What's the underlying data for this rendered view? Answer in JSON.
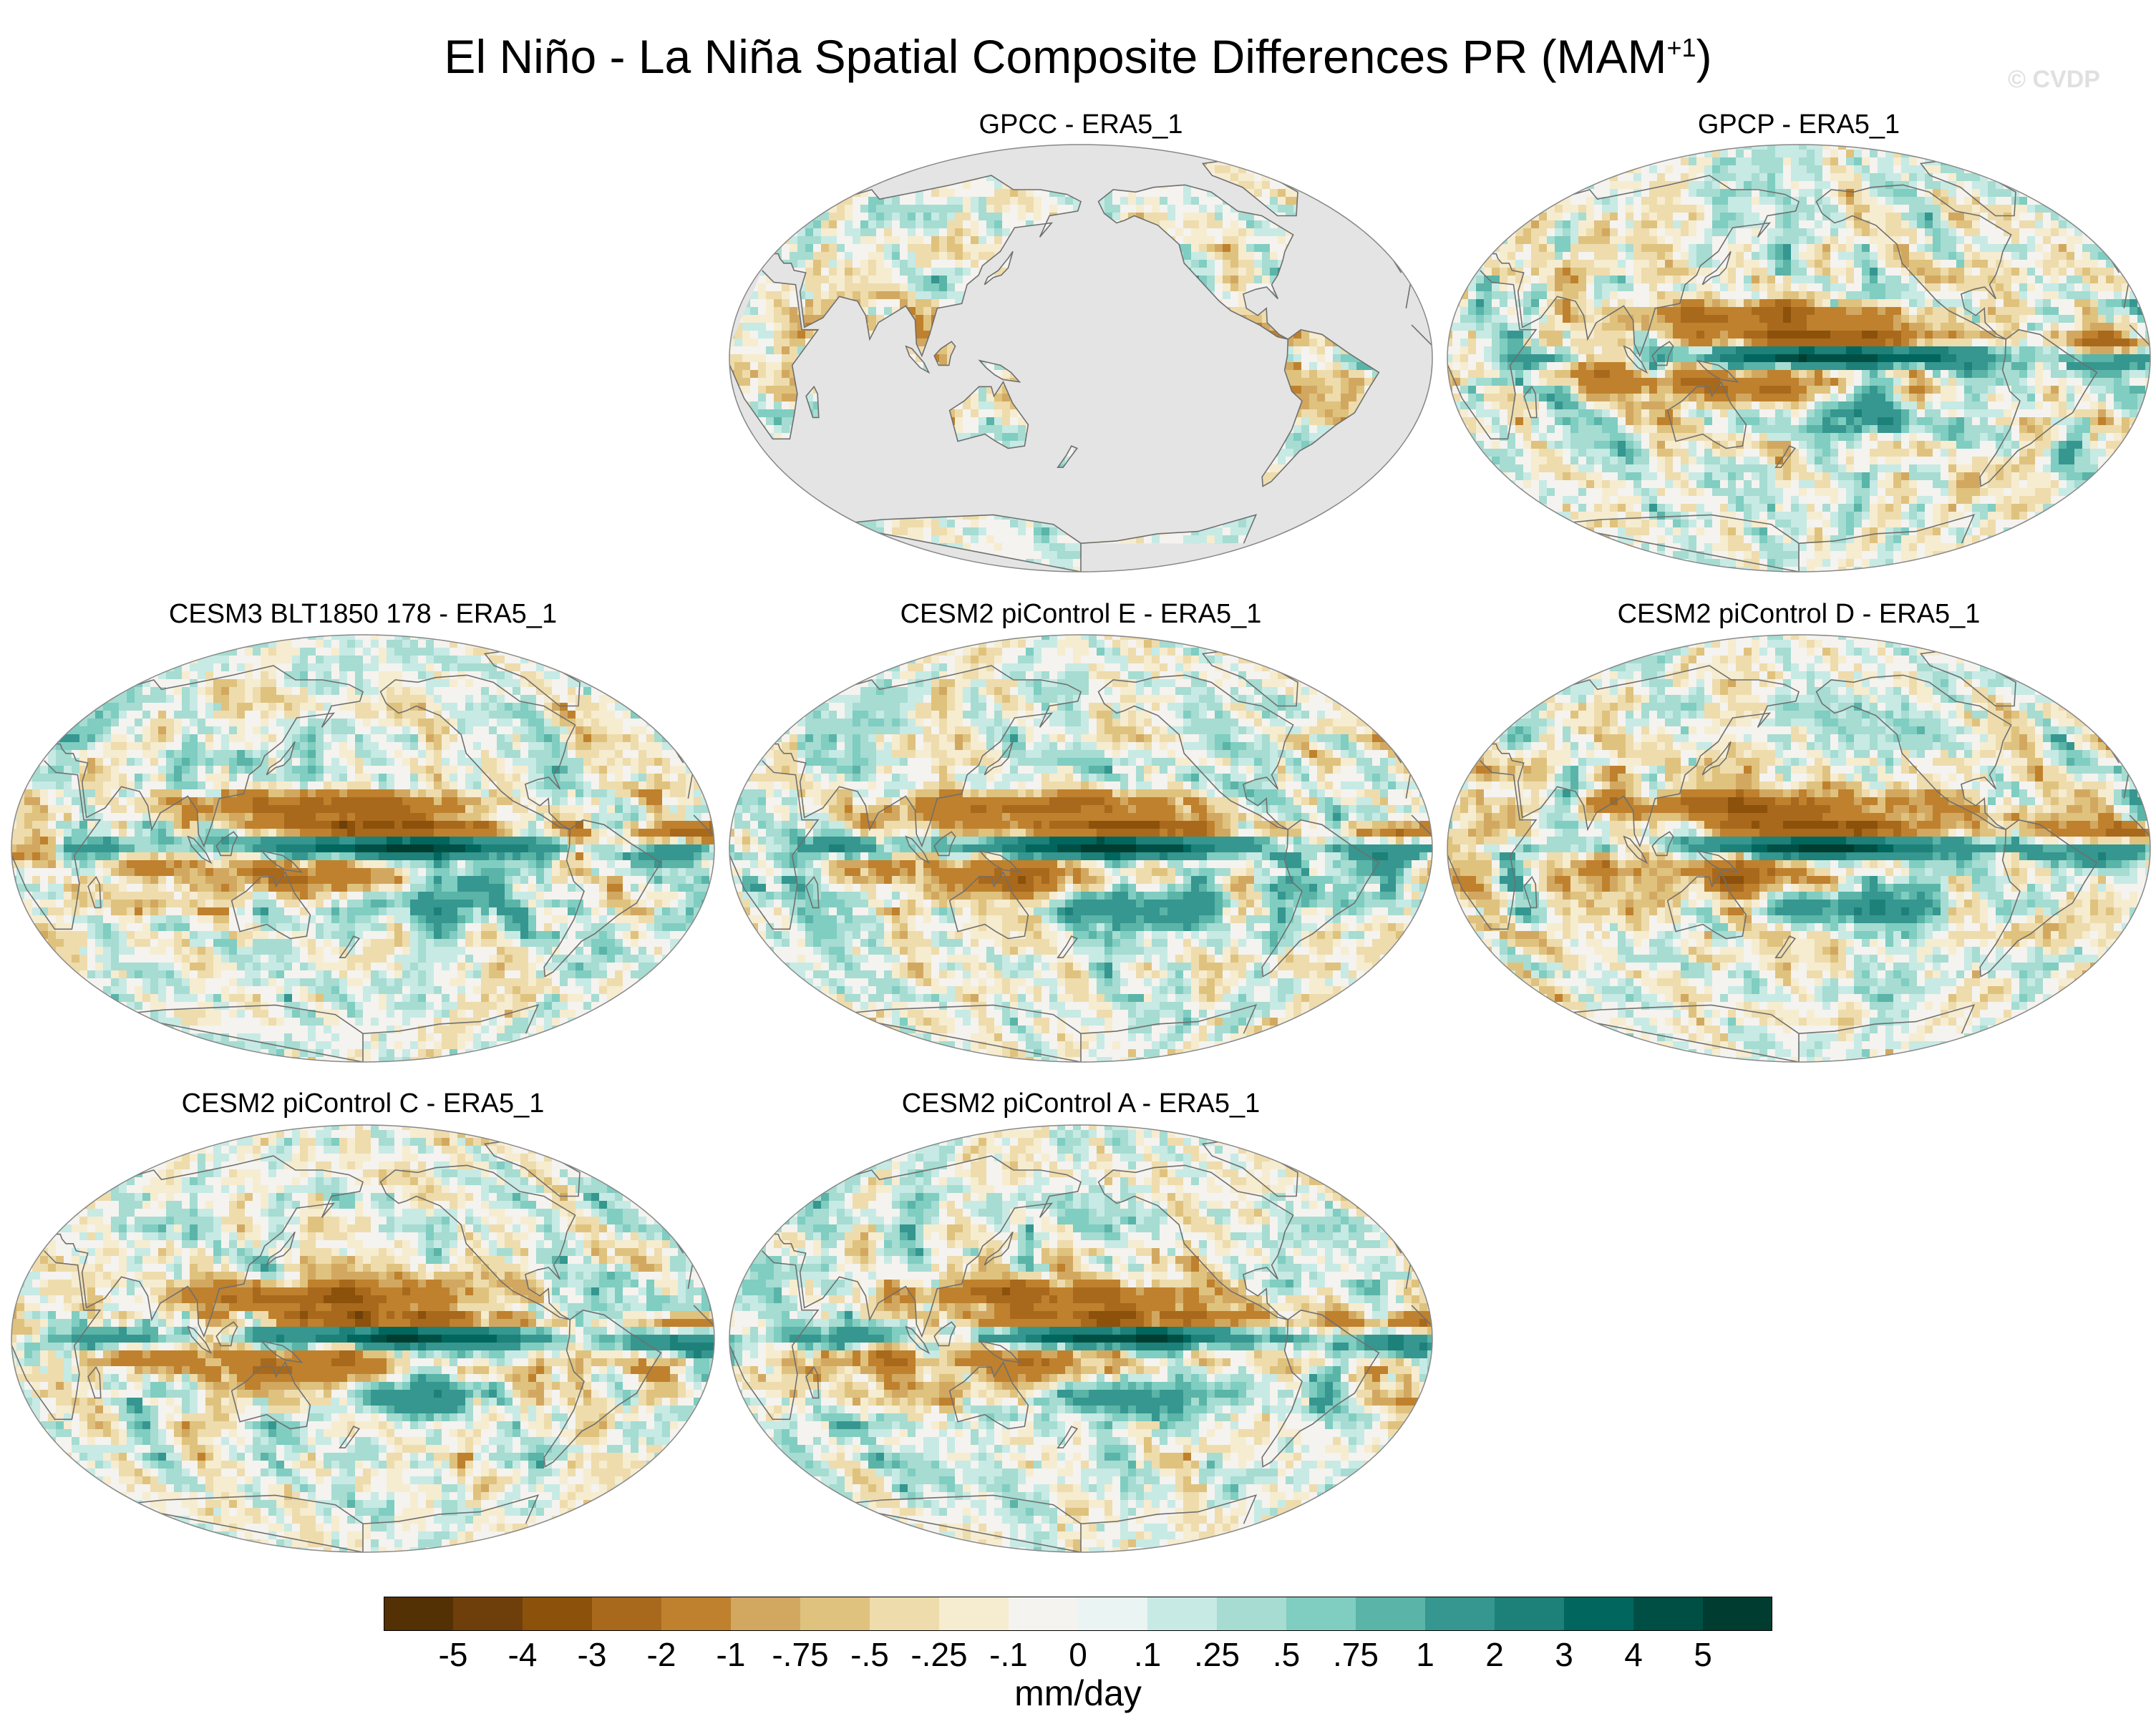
{
  "title": {
    "main": "El Niño - La Niña Spatial Composite Differences PR (MAM",
    "superscript": "+1",
    "close": ")"
  },
  "watermark": "© CVDP",
  "panels": [
    {
      "id": "gpcc",
      "title": "GPCC - ERA5_1",
      "land_only": true
    },
    {
      "id": "gpcp",
      "title": "GPCP - ERA5_1",
      "land_only": false
    },
    {
      "id": "cesm3",
      "title": "CESM3 BLT1850 178 - ERA5_1",
      "land_only": false
    },
    {
      "id": "cesm2e",
      "title": "CESM2 piControl E - ERA5_1",
      "land_only": false
    },
    {
      "id": "cesm2d",
      "title": "CESM2 piControl D - ERA5_1",
      "land_only": false
    },
    {
      "id": "cesm2c",
      "title": "CESM2 piControl C - ERA5_1",
      "land_only": false
    },
    {
      "id": "cesm2a",
      "title": "CESM2 piControl A - ERA5_1",
      "land_only": false
    }
  ],
  "colorbar": {
    "labels": [
      "-5",
      "-4",
      "-3",
      "-2",
      "-1",
      "-.75",
      "-.5",
      "-.25",
      "-.1",
      "0",
      ".1",
      ".25",
      ".5",
      ".75",
      "1",
      "2",
      "3",
      "4",
      "5"
    ],
    "colors": [
      "#543005",
      "#6e3f0a",
      "#8c510a",
      "#a8691c",
      "#bf812d",
      "#d2a861",
      "#dfc27d",
      "#eedcad",
      "#f6ecd0",
      "#f5f3ef",
      "#eaf4f2",
      "#c7eae5",
      "#a6dcd2",
      "#80cdc1",
      "#5ab4a8",
      "#35978f",
      "#1d8079",
      "#01665e",
      "#004f45",
      "#003c30"
    ],
    "units": "mm/day"
  }
}
